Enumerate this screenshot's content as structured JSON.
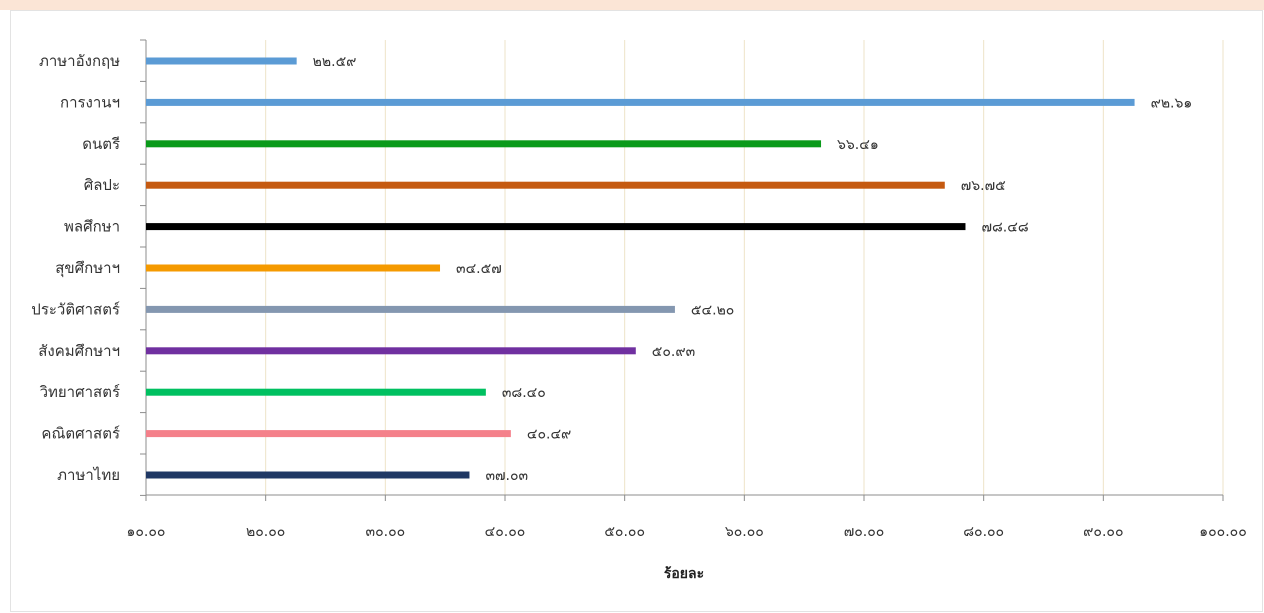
{
  "chart_data": {
    "type": "bar",
    "orientation": "horizontal",
    "xlabel": "ร้อยละ",
    "xlim": [
      10,
      100
    ],
    "xticks": [
      10,
      20,
      30,
      40,
      50,
      60,
      70,
      80,
      90,
      100
    ],
    "xtick_labels": [
      "๑๐.๐๐",
      "๒๐.๐๐",
      "๓๐.๐๐",
      "๔๐.๐๐",
      "๕๐.๐๐",
      "๖๐.๐๐",
      "๗๐.๐๐",
      "๘๐.๐๐",
      "๙๐.๐๐",
      "๑๐๐.๐๐"
    ],
    "grid": "vertical",
    "bars": [
      {
        "category": "ภาษาอังกฤษ",
        "value": 22.59,
        "label": "๒๒.๕๙",
        "color": "#5b9bd5"
      },
      {
        "category": "การงานฯ",
        "value": 92.61,
        "label": "๙๒.๖๑",
        "color": "#5b9bd5"
      },
      {
        "category": "ดนตรี",
        "value": 66.41,
        "label": "๖๖.๔๑",
        "color": "#0a9a1a"
      },
      {
        "category": "ศิลปะ",
        "value": 76.75,
        "label": "๗๖.๗๕",
        "color": "#c55a11"
      },
      {
        "category": "พลศึกษา",
        "value": 78.48,
        "label": "๗๘.๔๘",
        "color": "#000000"
      },
      {
        "category": "สุขศึกษาฯ",
        "value": 34.57,
        "label": "๓๔.๕๗",
        "color": "#f59a00"
      },
      {
        "category": "ประวัติศาสตร์",
        "value": 54.2,
        "label": "๕๔.๒๐",
        "color": "#8497b0"
      },
      {
        "category": "สังคมศึกษาฯ",
        "value": 50.93,
        "label": "๕๐.๙๓",
        "color": "#7030a0"
      },
      {
        "category": "วิทยาศาสตร์",
        "value": 38.4,
        "label": "๓๘.๔๐",
        "color": "#00c060"
      },
      {
        "category": "คณิตศาสตร์",
        "value": 40.49,
        "label": "๔๐.๔๙",
        "color": "#f4808a"
      },
      {
        "category": "ภาษาไทย",
        "value": 37.03,
        "label": "๓๗.๐๓",
        "color": "#1f3864"
      }
    ]
  }
}
